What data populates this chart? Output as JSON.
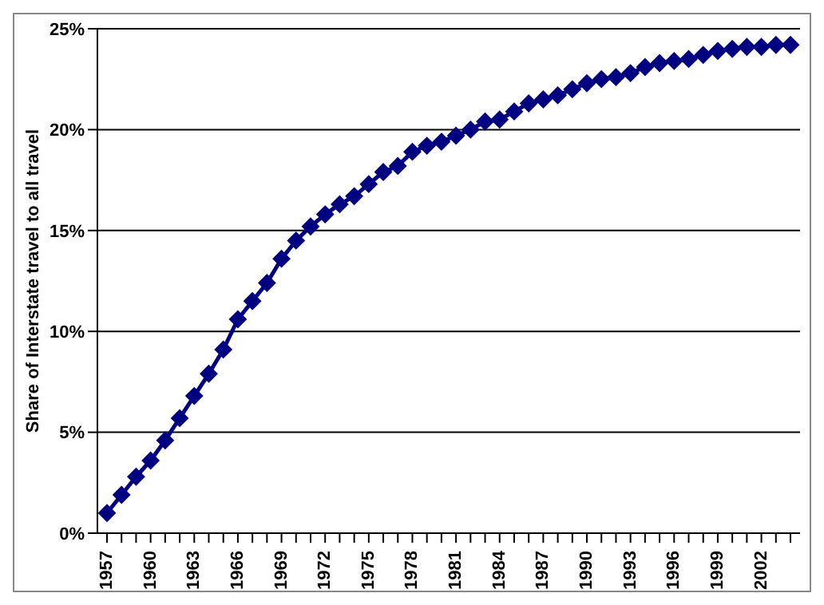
{
  "chart_data": {
    "type": "line",
    "ylabel": "Share of Interstate travel to all travel",
    "categories": [
      "1957",
      null,
      null,
      "1960",
      null,
      null,
      "1963",
      null,
      null,
      "1966",
      null,
      null,
      "1969",
      null,
      null,
      "1972",
      null,
      null,
      "1975",
      null,
      null,
      "1978",
      null,
      null,
      "1981",
      null,
      null,
      "1984",
      null,
      null,
      "1987",
      null,
      null,
      "1990",
      null,
      null,
      "1993",
      null,
      null,
      "1996",
      null,
      null,
      "1999",
      null,
      null,
      "2002",
      null,
      null
    ],
    "series": [
      {
        "color": "#000080",
        "values": [
          1.0,
          1.9,
          2.8,
          3.6,
          4.6,
          5.7,
          6.8,
          7.9,
          9.1,
          10.6,
          11.5,
          12.4,
          13.6,
          14.5,
          15.2,
          15.8,
          16.3,
          16.7,
          17.3,
          17.9,
          18.2,
          18.9,
          19.2,
          19.4,
          19.7,
          20.0,
          20.4,
          20.5,
          20.9,
          21.3,
          21.5,
          21.7,
          22.0,
          22.3,
          22.5,
          22.6,
          22.8,
          23.1,
          23.3,
          23.4,
          23.5,
          23.7,
          23.9,
          24.0,
          24.1,
          24.1,
          24.2,
          24.2
        ]
      }
    ],
    "ylim": [
      0,
      25
    ],
    "yticks": [
      {
        "value": 0,
        "label": "0%"
      },
      {
        "value": 5,
        "label": "5%"
      },
      {
        "value": 10,
        "label": "10%"
      },
      {
        "value": 15,
        "label": "15%"
      },
      {
        "value": 20,
        "label": "20%"
      },
      {
        "value": 25,
        "label": "25%"
      }
    ],
    "grid": "y",
    "marker": "diamond",
    "line_style": "solid",
    "legend": false
  }
}
